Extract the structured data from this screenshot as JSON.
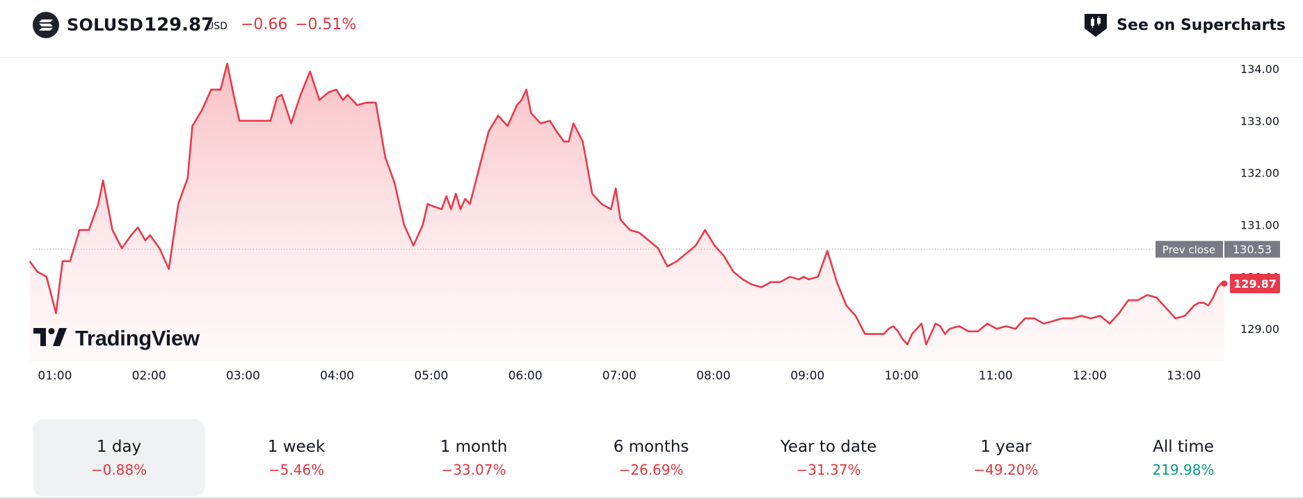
{
  "header": {
    "symbol": "SOLUSD",
    "price": "129.87",
    "currency": "USD",
    "change": "−0.66",
    "change_percent": "−0.51%",
    "supercharts_label": "See on Supercharts",
    "symbol_icon": "solana-logo-icon",
    "supercharts_icon": "candlestick-flag-icon"
  },
  "watermark": {
    "text": "TradingView",
    "icon": "tradingview-logo-icon"
  },
  "labels": {
    "prev_close_label": "Prev close",
    "prev_close_value": "130.53",
    "last_price_value": "129.87"
  },
  "colors": {
    "line": "#e8394a",
    "negative": "#e0353f",
    "positive": "#089981",
    "prev_close_badge": "#787b86",
    "last_price_badge": "#e8394a"
  },
  "chart_data": {
    "type": "area",
    "x_unit": "time of day (hours)",
    "x_ticks": [
      "01:00",
      "02:00",
      "03:00",
      "04:00",
      "05:00",
      "06:00",
      "07:00",
      "08:00",
      "09:00",
      "10:00",
      "11:00",
      "12:00",
      "13:00"
    ],
    "x_tick_values": [
      1,
      2,
      3,
      4,
      5,
      6,
      7,
      8,
      9,
      10,
      11,
      12,
      13
    ],
    "y_ticks": [
      "134.00",
      "133.00",
      "132.00",
      "131.00",
      "130.00",
      "129.00"
    ],
    "y_tick_values": [
      134,
      133,
      132,
      131,
      130,
      129
    ],
    "xlim": [
      0.8,
      13.6
    ],
    "ylim": [
      128.4,
      134.2
    ],
    "prev_close": 130.53,
    "last_price": 129.87,
    "series": [
      {
        "x": [
          0.82,
          0.9,
          1.0,
          1.1,
          1.17,
          1.25,
          1.35,
          1.45,
          1.55,
          1.6,
          1.7,
          1.8,
          1.9,
          1.97,
          2.05,
          2.1,
          2.2,
          2.3,
          2.4,
          2.5,
          2.55,
          2.65,
          2.75,
          2.85,
          2.92,
          3.0,
          3.05,
          3.12,
          3.2,
          3.3,
          3.38,
          3.45,
          3.5,
          3.6,
          3.7,
          3.8,
          3.9,
          4.0,
          4.08,
          4.15,
          4.2,
          4.3,
          4.4,
          4.5,
          4.6,
          4.7,
          4.8,
          4.9,
          5.0,
          5.05,
          5.12,
          5.2,
          5.25,
          5.3,
          5.35,
          5.4,
          5.45,
          5.5,
          5.6,
          5.7,
          5.8,
          5.9,
          6.0,
          6.05,
          6.1,
          6.15,
          6.25,
          6.35,
          6.42,
          6.5,
          6.55,
          6.6,
          6.7,
          6.8,
          6.9,
          7.0,
          7.05,
          7.1,
          7.2,
          7.3,
          7.4,
          7.5,
          7.6,
          7.7,
          7.8,
          7.9,
          8.0,
          8.1,
          8.2,
          8.3,
          8.4,
          8.5,
          8.6,
          8.7,
          8.8,
          8.9,
          9.0,
          9.05,
          9.1,
          9.2,
          9.3,
          9.4,
          9.5,
          9.6,
          9.7,
          9.8,
          9.9,
          9.95,
          10.0,
          10.05,
          10.1,
          10.15,
          10.2,
          10.25,
          10.3,
          10.35,
          10.4,
          10.45,
          10.5,
          10.55,
          10.6,
          10.7,
          10.8,
          10.9,
          11.0,
          11.1,
          11.2,
          11.3,
          11.4,
          11.5,
          11.6,
          11.7,
          11.8,
          11.9,
          12.0,
          12.1,
          12.2,
          12.3,
          12.4,
          12.5,
          12.6,
          12.7,
          12.8,
          12.9,
          13.0,
          13.1,
          13.15,
          13.2,
          13.25,
          13.3,
          13.35,
          13.4,
          13.45,
          13.5,
          13.52
        ],
        "y": [
          130.3,
          130.1,
          130.0,
          129.3,
          130.3,
          130.3,
          130.9,
          130.9,
          131.4,
          131.85,
          130.9,
          130.55,
          130.8,
          130.95,
          130.7,
          130.8,
          130.55,
          130.15,
          131.4,
          131.9,
          132.9,
          133.2,
          133.6,
          133.6,
          134.1,
          133.4,
          133.0,
          133.0,
          133.0,
          133.0,
          133.0,
          133.45,
          133.5,
          132.95,
          133.5,
          133.95,
          133.4,
          133.55,
          133.6,
          133.4,
          133.5,
          133.3,
          133.35,
          133.35,
          132.3,
          131.8,
          131.0,
          130.6,
          131.0,
          131.4,
          131.35,
          131.3,
          131.55,
          131.3,
          131.6,
          131.3,
          131.5,
          131.4,
          132.1,
          132.8,
          133.1,
          132.9,
          133.3,
          133.4,
          133.6,
          133.15,
          132.95,
          133.0,
          132.8,
          132.6,
          132.6,
          132.95,
          132.6,
          131.6,
          131.4,
          131.3,
          131.7,
          131.1,
          130.9,
          130.85,
          130.7,
          130.55,
          130.2,
          130.3,
          130.45,
          130.6,
          130.9,
          130.6,
          130.4,
          130.1,
          129.95,
          129.85,
          129.8,
          129.9,
          129.9,
          130.0,
          129.95,
          130.0,
          129.95,
          130.0,
          130.5,
          129.9,
          129.45,
          129.25,
          128.9,
          128.9,
          128.9,
          129.0,
          129.05,
          128.95,
          128.8,
          128.7,
          128.9,
          129.0,
          129.1,
          128.7,
          128.9,
          129.1,
          129.05,
          128.9,
          129.0,
          129.05,
          128.95,
          128.95,
          129.1,
          129.0,
          129.05,
          129.0,
          129.2,
          129.2,
          129.1,
          129.15,
          129.2,
          129.2,
          129.25,
          129.2,
          129.25,
          129.1,
          129.3,
          129.55,
          129.55,
          129.65,
          129.6,
          129.4,
          129.2,
          129.25,
          129.35,
          129.45,
          129.5,
          129.5,
          129.45,
          129.6,
          129.8,
          129.9,
          129.87
        ]
      }
    ]
  },
  "tabs": [
    {
      "label": "1 day",
      "value": "−0.88%",
      "trend": "neg",
      "active": true
    },
    {
      "label": "1 week",
      "value": "−5.46%",
      "trend": "neg",
      "active": false
    },
    {
      "label": "1 month",
      "value": "−33.07%",
      "trend": "neg",
      "active": false
    },
    {
      "label": "6 months",
      "value": "−26.69%",
      "trend": "neg",
      "active": false
    },
    {
      "label": "Year to date",
      "value": "−31.37%",
      "trend": "neg",
      "active": false
    },
    {
      "label": "1 year",
      "value": "−49.20%",
      "trend": "neg",
      "active": false
    },
    {
      "label": "All time",
      "value": "219.98%",
      "trend": "pos",
      "active": false
    }
  ]
}
